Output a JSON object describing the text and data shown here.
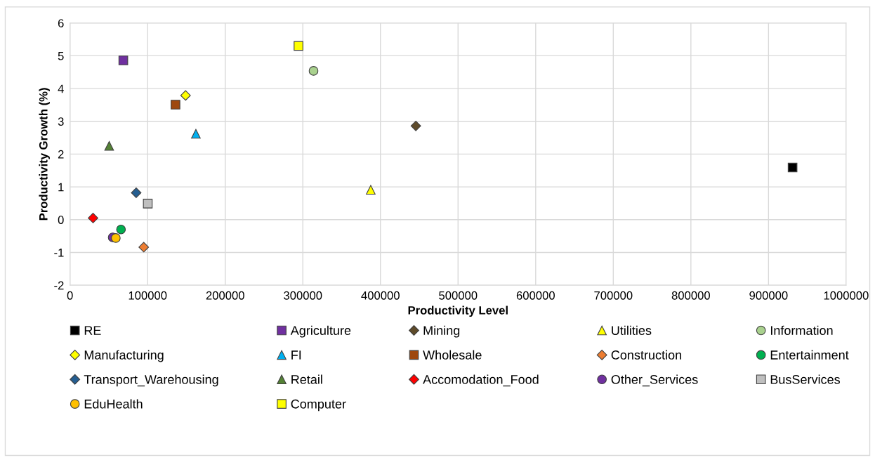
{
  "chart_data": {
    "type": "scatter",
    "xlabel": "Productivity Level",
    "ylabel": "Productivity Growth (%)",
    "xlim": [
      0,
      1000000
    ],
    "xticks": [
      0,
      100000,
      200000,
      300000,
      400000,
      500000,
      600000,
      700000,
      800000,
      900000,
      1000000
    ],
    "ylim": [
      -2,
      6
    ],
    "yticks": [
      -2,
      -1,
      0,
      1,
      2,
      3,
      4,
      5,
      6
    ],
    "grid": true,
    "legend": "bottom",
    "series": [
      {
        "name": "RE",
        "marker": "square",
        "color": "#000000",
        "x": [
          931000
        ],
        "values": [
          1.59
        ]
      },
      {
        "name": "Agriculture",
        "marker": "square",
        "color": "#7030a0",
        "x": [
          68700
        ],
        "values": [
          4.86
        ]
      },
      {
        "name": "Mining",
        "marker": "diamond",
        "color": "#5e4b2a",
        "x": [
          445600
        ],
        "values": [
          2.86
        ]
      },
      {
        "name": "Utilities",
        "marker": "triangle",
        "color": "#ffff00",
        "x": [
          387500
        ],
        "values": [
          0.91
        ]
      },
      {
        "name": "Information",
        "marker": "circle",
        "color": "#a9d18e",
        "x": [
          313800
        ],
        "values": [
          4.54
        ]
      },
      {
        "name": "Manufacturing",
        "marker": "diamond",
        "color": "#ffff00",
        "x": [
          148900
        ],
        "values": [
          3.79
        ]
      },
      {
        "name": "FI",
        "marker": "triangle",
        "color": "#00b0f0",
        "x": [
          162200
        ],
        "values": [
          2.62
        ]
      },
      {
        "name": "Wholesale",
        "marker": "square",
        "color": "#9e480e",
        "x": [
          135900
        ],
        "values": [
          3.51
        ]
      },
      {
        "name": "Construction",
        "marker": "diamond",
        "color": "#ed7d31",
        "x": [
          95000
        ],
        "values": [
          -0.84
        ]
      },
      {
        "name": "Entertainment",
        "marker": "circle",
        "color": "#00b050",
        "x": [
          65700
        ],
        "values": [
          -0.3
        ]
      },
      {
        "name": "Transport_Warehousing",
        "marker": "diamond",
        "color": "#255e91",
        "x": [
          85300
        ],
        "values": [
          0.82
        ]
      },
      {
        "name": "Retail",
        "marker": "triangle",
        "color": "#548235",
        "x": [
          50500
        ],
        "values": [
          2.25
        ]
      },
      {
        "name": "Accomodation_Food",
        "marker": "diamond",
        "color": "#ff0000",
        "x": [
          29700
        ],
        "values": [
          0.05
        ]
      },
      {
        "name": "Other_Services",
        "marker": "circle",
        "color": "#7030a0",
        "x": [
          55000
        ],
        "values": [
          -0.54
        ]
      },
      {
        "name": "BusServices",
        "marker": "square",
        "color": "#bfbfbf",
        "x": [
          100200
        ],
        "values": [
          0.49
        ]
      },
      {
        "name": "EduHealth",
        "marker": "circle",
        "color": "#ffc000",
        "x": [
          59000
        ],
        "values": [
          -0.56
        ]
      },
      {
        "name": "Computer",
        "marker": "square",
        "color": "#ffff00",
        "x": [
          294400
        ],
        "values": [
          5.3
        ]
      }
    ]
  }
}
